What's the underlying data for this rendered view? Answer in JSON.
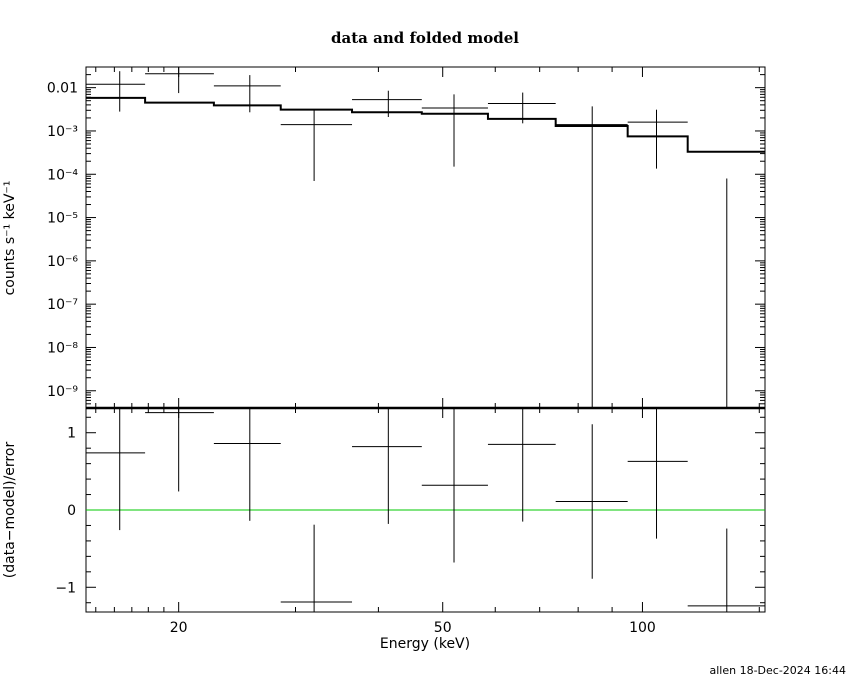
{
  "chart_data": [
    {
      "type": "scatter",
      "title": "data and folded model",
      "xlabel": "",
      "ylabel": "counts s⁻¹ keV⁻¹",
      "xscale": "log",
      "yscale": "log",
      "xlim": [
        14.5,
        153
      ],
      "ylim": [
        4e-10,
        0.03
      ],
      "yticks": [
        {
          "value": 0.01,
          "label": "0.01"
        },
        {
          "value": 0.001,
          "label": "10⁻³"
        },
        {
          "value": 0.0001,
          "label": "10⁻⁴"
        },
        {
          "value": 1e-05,
          "label": "10⁻⁵"
        },
        {
          "value": 1e-06,
          "label": "10⁻⁶"
        },
        {
          "value": 1e-07,
          "label": "10⁻⁷"
        },
        {
          "value": 1e-08,
          "label": "10⁻⁸"
        },
        {
          "value": 1e-09,
          "label": "10⁻⁹"
        }
      ],
      "series": [
        {
          "kind": "data",
          "color": "#000000",
          "points": [
            {
              "x_lo": 14.5,
              "x_hi": 17.8,
              "x": 16.3,
              "y": 0.012,
              "y_lo": 0.0028,
              "y_hi": 0.024
            },
            {
              "x_lo": 17.8,
              "x_hi": 22.6,
              "x": 20.0,
              "y": 0.021,
              "y_lo": 0.0075,
              "y_hi": 0.033
            },
            {
              "x_lo": 22.6,
              "x_hi": 28.5,
              "x": 25.6,
              "y": 0.011,
              "y_lo": 0.0027,
              "y_hi": 0.0195
            },
            {
              "x_lo": 28.5,
              "x_hi": 36.5,
              "x": 32.0,
              "y": 0.0014,
              "y_lo": 7e-05,
              "y_hi": 0.0032
            },
            {
              "x_lo": 36.5,
              "x_hi": 46.5,
              "x": 41.4,
              "y": 0.0053,
              "y_lo": 0.0021,
              "y_hi": 0.0085
            },
            {
              "x_lo": 46.5,
              "x_hi": 58.5,
              "x": 52.0,
              "y": 0.0034,
              "y_lo": 0.00015,
              "y_hi": 0.007
            },
            {
              "x_lo": 58.5,
              "x_hi": 74.0,
              "x": 66.0,
              "y": 0.0043,
              "y_lo": 0.0015,
              "y_hi": 0.0077
            },
            {
              "x_lo": 74.0,
              "x_hi": 95.0,
              "x": 84.0,
              "y": 0.0014,
              "y_lo": 4e-10,
              "y_hi": 0.0037
            },
            {
              "x_lo": 95.0,
              "x_hi": 117.0,
              "x": 105.0,
              "y": 0.0016,
              "y_lo": 0.000135,
              "y_hi": 0.0031
            },
            {
              "x_lo": 117.0,
              "x_hi": 153.0,
              "x": 134.0,
              "y": 4e-10,
              "y_lo": 4e-10,
              "y_hi": 8e-05
            }
          ]
        },
        {
          "kind": "model",
          "color": "#000000",
          "steps": [
            {
              "x_lo": 14.5,
              "x_hi": 17.8,
              "y": 0.0058
            },
            {
              "x_lo": 17.8,
              "x_hi": 22.6,
              "y": 0.0045
            },
            {
              "x_lo": 22.6,
              "x_hi": 28.5,
              "y": 0.0039
            },
            {
              "x_lo": 28.5,
              "x_hi": 36.5,
              "y": 0.0031
            },
            {
              "x_lo": 36.5,
              "x_hi": 46.5,
              "y": 0.0027
            },
            {
              "x_lo": 46.5,
              "x_hi": 58.5,
              "y": 0.0025
            },
            {
              "x_lo": 58.5,
              "x_hi": 74.0,
              "y": 0.0019
            },
            {
              "x_lo": 74.0,
              "x_hi": 95.0,
              "y": 0.0013
            },
            {
              "x_lo": 95.0,
              "x_hi": 117.0,
              "y": 0.00075
            },
            {
              "x_lo": 117.0,
              "x_hi": 153.0,
              "y": 0.00033
            }
          ]
        }
      ]
    },
    {
      "type": "scatter",
      "xlabel": "Energy (keV)",
      "ylabel": "(data−model)/error",
      "xscale": "log",
      "yscale": "linear",
      "xlim": [
        14.5,
        153
      ],
      "ylim": [
        -1.32,
        1.32
      ],
      "xticks": [
        {
          "value": 20,
          "label": "20"
        },
        {
          "value": 50,
          "label": "50"
        },
        {
          "value": 100,
          "label": "100"
        }
      ],
      "yticks": [
        {
          "value": 1,
          "label": "1"
        },
        {
          "value": 0,
          "label": "0"
        },
        {
          "value": -1,
          "label": "−1"
        }
      ],
      "reference_line": {
        "y": 0,
        "color": "#00c800"
      },
      "series": [
        {
          "kind": "residuals",
          "color": "#000000",
          "points": [
            {
              "x_lo": 14.5,
              "x_hi": 17.8,
              "x": 16.3,
              "y": 0.74,
              "y_lo": -0.26,
              "y_hi": 1.32
            },
            {
              "x_lo": 17.8,
              "x_hi": 22.6,
              "x": 20.0,
              "y": 1.26,
              "y_lo": 0.24,
              "y_hi": 1.32
            },
            {
              "x_lo": 22.6,
              "x_hi": 28.5,
              "x": 25.6,
              "y": 0.86,
              "y_lo": -0.14,
              "y_hi": 1.32
            },
            {
              "x_lo": 28.5,
              "x_hi": 36.5,
              "x": 32.0,
              "y": -1.19,
              "y_lo": -1.32,
              "y_hi": -0.19
            },
            {
              "x_lo": 36.5,
              "x_hi": 46.5,
              "x": 41.4,
              "y": 0.82,
              "y_lo": -0.18,
              "y_hi": 1.32
            },
            {
              "x_lo": 46.5,
              "x_hi": 58.5,
              "x": 52.0,
              "y": 0.32,
              "y_lo": -0.68,
              "y_hi": 1.32
            },
            {
              "x_lo": 58.5,
              "x_hi": 74.0,
              "x": 66.0,
              "y": 0.85,
              "y_lo": -0.15,
              "y_hi": 1.32
            },
            {
              "x_lo": 74.0,
              "x_hi": 95.0,
              "x": 84.0,
              "y": 0.11,
              "y_lo": -0.89,
              "y_hi": 1.11
            },
            {
              "x_lo": 95.0,
              "x_hi": 117.0,
              "x": 105.0,
              "y": 0.63,
              "y_lo": -0.37,
              "y_hi": 1.32
            },
            {
              "x_lo": 117.0,
              "x_hi": 153.0,
              "x": 134.0,
              "y": -1.24,
              "y_lo": -1.32,
              "y_hi": -0.24
            }
          ]
        }
      ]
    }
  ],
  "footer": {
    "stamp": "allen 18-Dec-2024 16:44"
  }
}
